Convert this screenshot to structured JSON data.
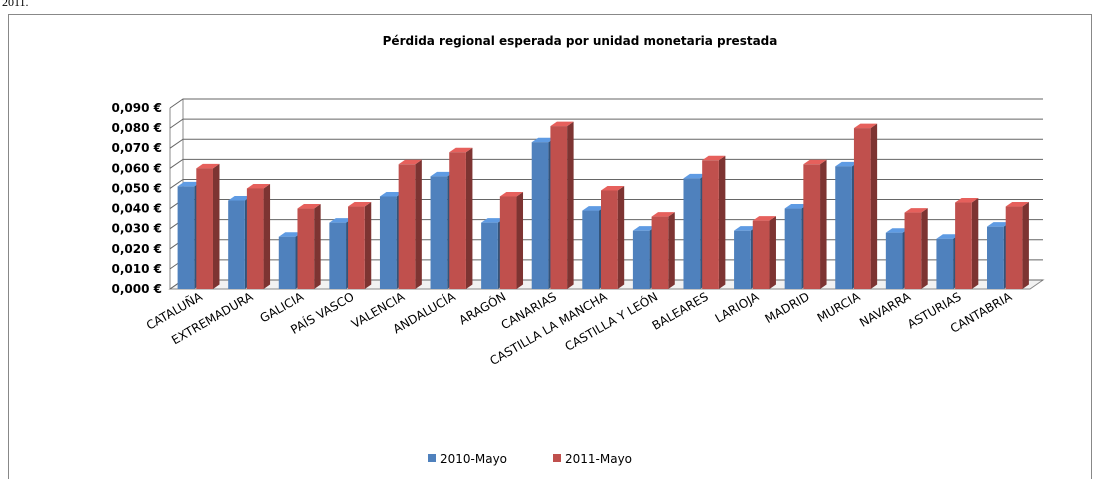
{
  "caption_fragment": "2011.",
  "chart_data": {
    "type": "bar3d",
    "title": "Pérdida regional esperada por unidad monetaria prestada",
    "categories": [
      "CATALUÑA",
      "EXTREMADURA",
      "GALICIA",
      "PAÍS VASCO",
      "VALENCIA",
      "ANDALUCÍA",
      "ARAGÓN",
      "CANARIAS",
      "CASTILLA LA MANCHA",
      "CASTILLA  Y LEÓN",
      "BALEARES",
      "LARIOJA",
      "MADRID",
      "MURCIA",
      "NAVARRA",
      "ASTURIAS",
      "CANTABRIA"
    ],
    "series": [
      {
        "name": "2010-Mayo",
        "color": "#4f81bd",
        "values": [
          0.051,
          0.044,
          0.026,
          0.033,
          0.046,
          0.056,
          0.033,
          0.073,
          0.039,
          0.029,
          0.055,
          0.029,
          0.04,
          0.061,
          0.028,
          0.025,
          0.031
        ]
      },
      {
        "name": "2011-Mayo",
        "color": "#c0504d",
        "values": [
          0.06,
          0.05,
          0.04,
          0.041,
          0.062,
          0.068,
          0.046,
          0.081,
          0.049,
          0.036,
          0.064,
          0.034,
          0.062,
          0.08,
          0.038,
          0.043,
          0.041
        ]
      }
    ],
    "ylim": [
      0,
      0.09
    ],
    "yticks": [
      {
        "value": 0,
        "label": "0,000 €"
      },
      {
        "value": 0.01,
        "label": "0,010 €"
      },
      {
        "value": 0.02,
        "label": "0,020 €"
      },
      {
        "value": 0.03,
        "label": "0,030 €"
      },
      {
        "value": 0.04,
        "label": "0,040 €"
      },
      {
        "value": 0.05,
        "label": "0,050 €"
      },
      {
        "value": 0.06,
        "label": "0,060 €"
      },
      {
        "value": 0.07,
        "label": "0,070 €"
      },
      {
        "value": 0.08,
        "label": "0,080 €"
      },
      {
        "value": 0.09,
        "label": "0,090 €"
      }
    ],
    "grid": true,
    "legend": "bottom"
  }
}
